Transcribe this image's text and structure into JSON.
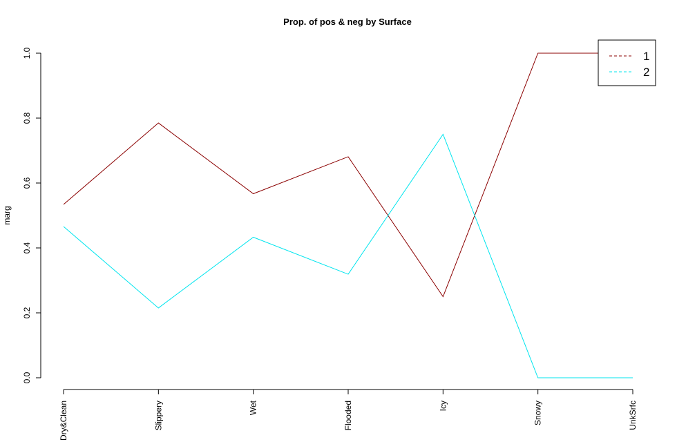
{
  "chart_data": {
    "type": "line",
    "title": "Prop. of pos & neg by Surface",
    "xlabel": "",
    "ylabel": "marg",
    "categories": [
      "Dry&Clean",
      "Slippery",
      "Wet",
      "Flooded",
      "Icy",
      "Snowy",
      "UnkSrfc"
    ],
    "ylim": [
      0,
      1
    ],
    "yticks": [
      "0.0",
      "0.2",
      "0.4",
      "0.6",
      "0.8",
      "1.0"
    ],
    "grid": false,
    "legend_position": "top-right",
    "series": [
      {
        "name": "1",
        "color": "#8B0000",
        "values": [
          0.534,
          0.785,
          0.567,
          0.681,
          0.25,
          1.0,
          1.0
        ]
      },
      {
        "name": "2",
        "color": "#00E5EE",
        "values": [
          0.466,
          0.215,
          0.433,
          0.319,
          0.75,
          0.0,
          0.0
        ]
      }
    ]
  }
}
